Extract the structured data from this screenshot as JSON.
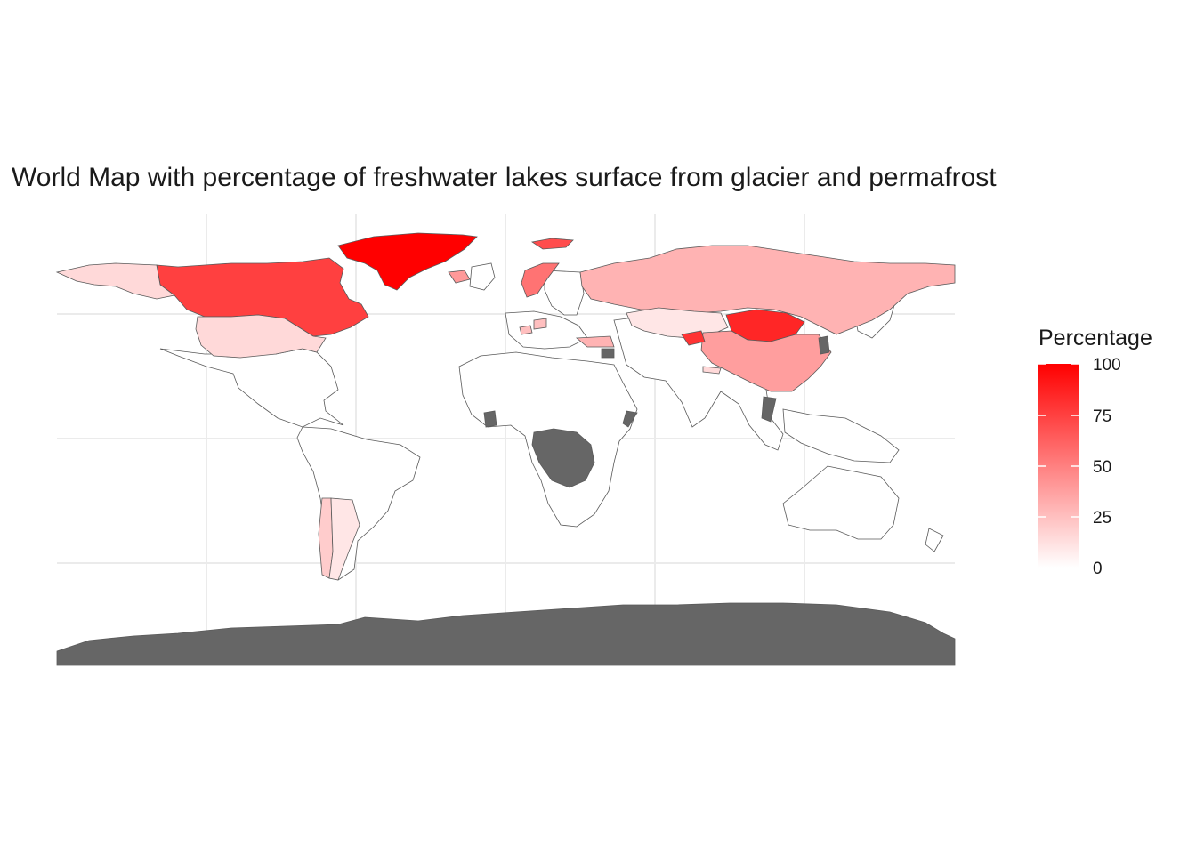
{
  "title": "World Map with percentage of freshwater lakes surface from glacier and permafrost",
  "colors": {
    "low": "#ffffff",
    "high": "#ff0000",
    "na": "#666666",
    "border": "#5a5a5a",
    "grid": "#ebebeb"
  },
  "legend": {
    "title": "Percentage",
    "ticks": [
      "100",
      "75",
      "50",
      "25",
      "0"
    ],
    "range": [
      0,
      100
    ]
  },
  "chart_data": {
    "type": "choropleth",
    "title": "World Map with percentage of freshwater lakes surface from glacier and permafrost",
    "legend_title": "Percentage",
    "scale": {
      "min": 0,
      "max": 100,
      "low_color": "#ffffff",
      "high_color": "#ff0000",
      "na_color": "#666666"
    },
    "grid": true,
    "legend_position": "right",
    "regions": [
      {
        "name": "Greenland",
        "value": 100
      },
      {
        "name": "Mongolia",
        "value": 85
      },
      {
        "name": "Canada",
        "value": 75
      },
      {
        "name": "Svalbard",
        "value": 70
      },
      {
        "name": "Kyrgyzstan",
        "value": 80
      },
      {
        "name": "Norway",
        "value": 55
      },
      {
        "name": "Iceland",
        "value": 40
      },
      {
        "name": "China",
        "value": 38
      },
      {
        "name": "Russia",
        "value": 30
      },
      {
        "name": "Turkey",
        "value": 30
      },
      {
        "name": "Alaska",
        "value": 15
      },
      {
        "name": "United States",
        "value": 15
      },
      {
        "name": "Kazakhstan",
        "value": 10
      },
      {
        "name": "Argentina",
        "value": 10
      },
      {
        "name": "Chile",
        "value": 20
      },
      {
        "name": "Nepal",
        "value": 15
      },
      {
        "name": "Austria",
        "value": 25
      },
      {
        "name": "Switzerland",
        "value": 25
      },
      {
        "name": "Antarctica",
        "value": null
      },
      {
        "name": "DR Congo",
        "value": null
      },
      {
        "name": "Vietnam",
        "value": null
      },
      {
        "name": "Ivory Coast",
        "value": null
      },
      {
        "name": "Somalia",
        "value": null
      },
      {
        "name": "Syria",
        "value": null
      },
      {
        "name": "North Korea",
        "value": null
      }
    ]
  }
}
